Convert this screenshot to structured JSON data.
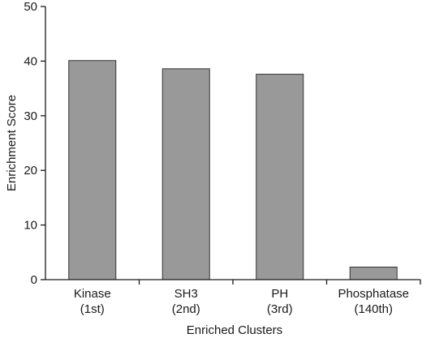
{
  "chart_data": {
    "type": "bar",
    "title": "",
    "xlabel": "Enriched Clusters",
    "ylabel": "Enrichment Score",
    "ylim": [
      0,
      50
    ],
    "yticks": [
      "0",
      "10",
      "20",
      "30",
      "40",
      "50"
    ],
    "categories": [
      {
        "line1": "Kinase",
        "line2": "(1st)"
      },
      {
        "line1": "SH3",
        "line2": "(2nd)"
      },
      {
        "line1": "PH",
        "line2": "(3rd)"
      },
      {
        "line1": "Phosphatase",
        "line2": "(140th)"
      }
    ],
    "values": [
      40.1,
      38.6,
      37.6,
      2.3
    ],
    "bar_color": "#999999",
    "bar_edge_color": "#333333",
    "grid": false,
    "legend": "none"
  }
}
